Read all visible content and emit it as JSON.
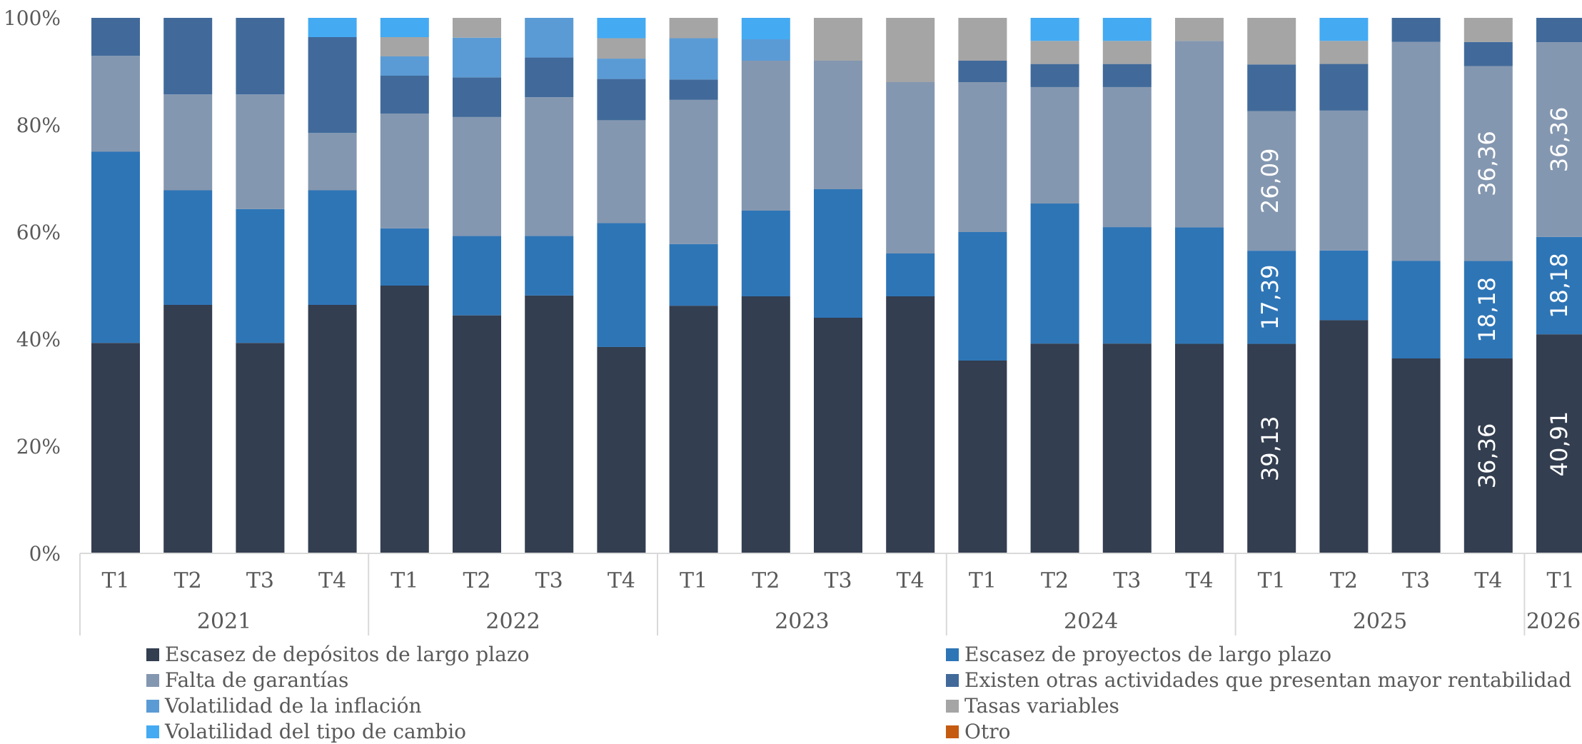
{
  "chart_data": {
    "type": "bar",
    "stacked": true,
    "percent": true,
    "y_ticks": [
      "0%",
      "20%",
      "40%",
      "60%",
      "80%",
      "100%"
    ],
    "ylim": [
      0,
      100
    ],
    "categories": [
      {
        "year": "2021",
        "quarter": "T1"
      },
      {
        "year": "2021",
        "quarter": "T2"
      },
      {
        "year": "2021",
        "quarter": "T3"
      },
      {
        "year": "2021",
        "quarter": "T4"
      },
      {
        "year": "2022",
        "quarter": "T1"
      },
      {
        "year": "2022",
        "quarter": "T2"
      },
      {
        "year": "2022",
        "quarter": "T3"
      },
      {
        "year": "2022",
        "quarter": "T4"
      },
      {
        "year": "2023",
        "quarter": "T1"
      },
      {
        "year": "2023",
        "quarter": "T2"
      },
      {
        "year": "2023",
        "quarter": "T3"
      },
      {
        "year": "2023",
        "quarter": "T4"
      },
      {
        "year": "2024",
        "quarter": "T1"
      },
      {
        "year": "2024",
        "quarter": "T2"
      },
      {
        "year": "2024",
        "quarter": "T3"
      },
      {
        "year": "2024",
        "quarter": "T4"
      },
      {
        "year": "2025",
        "quarter": "T1"
      },
      {
        "year": "2025",
        "quarter": "T2"
      },
      {
        "year": "2025",
        "quarter": "T3"
      },
      {
        "year": "2025",
        "quarter": "T4"
      },
      {
        "year": "2026",
        "quarter": "T1"
      }
    ],
    "years": [
      "2021",
      "2022",
      "2023",
      "2024",
      "2025",
      "2026"
    ],
    "series": [
      {
        "name": "Escasez de depósitos de largo plazo",
        "color": "#333e50",
        "values": [
          39.3,
          46.4,
          39.3,
          46.4,
          50.0,
          44.4,
          48.1,
          38.5,
          46.2,
          48.0,
          44.0,
          48.0,
          36.0,
          39.1,
          39.1,
          39.1,
          39.13,
          43.5,
          36.4,
          36.36,
          40.91
        ]
      },
      {
        "name": "Escasez de proyectos de largo plazo",
        "color": "#2e75b6",
        "values": [
          35.7,
          21.4,
          25.0,
          21.4,
          10.7,
          14.8,
          11.1,
          23.1,
          11.5,
          16.0,
          24.0,
          8.0,
          24.0,
          26.1,
          21.7,
          21.7,
          17.39,
          13.0,
          18.2,
          18.18,
          18.18
        ]
      },
      {
        "name": "Falta de garantías",
        "color": "#8497b0",
        "values": [
          17.9,
          17.9,
          21.4,
          10.7,
          21.4,
          22.2,
          25.9,
          19.2,
          26.9,
          28.0,
          24.0,
          32.0,
          28.0,
          21.7,
          26.1,
          34.8,
          26.09,
          26.1,
          40.9,
          36.36,
          36.36
        ]
      },
      {
        "name": "Existen otras actividades que presentan mayor rentabilidad",
        "color": "#416a9a",
        "values": [
          7.1,
          14.3,
          14.3,
          17.9,
          7.1,
          7.4,
          7.4,
          7.7,
          3.8,
          0,
          0,
          0,
          4.0,
          4.3,
          4.3,
          0,
          8.7,
          8.7,
          4.5,
          4.5,
          4.55
        ]
      },
      {
        "name": "Volatilidad de la inflación",
        "color": "#5b9bd5",
        "values": [
          0,
          0,
          0,
          0,
          3.6,
          7.4,
          7.4,
          3.8,
          7.7,
          4.0,
          0,
          0,
          0,
          0,
          0,
          0,
          0,
          0,
          0,
          0,
          0
        ]
      },
      {
        "name": "Tasas variables",
        "color": "#a5a5a5",
        "values": [
          0,
          0,
          0,
          0,
          3.6,
          3.7,
          0,
          3.8,
          3.8,
          0,
          8.0,
          12.0,
          8.0,
          4.3,
          4.3,
          4.3,
          8.7,
          4.3,
          0,
          4.5,
          0
        ]
      },
      {
        "name": "Volatilidad del tipo de cambio",
        "color": "#44aaf2",
        "values": [
          0,
          0,
          0,
          3.6,
          3.6,
          0,
          0,
          3.8,
          0,
          4.0,
          0,
          0,
          0,
          4.3,
          4.3,
          0,
          0,
          4.3,
          0,
          0,
          0
        ]
      },
      {
        "name": "Otro",
        "color": "#c55a11",
        "values": [
          0,
          0,
          0,
          0,
          0,
          0,
          0,
          0,
          0,
          0,
          0,
          0,
          0,
          0,
          0,
          0,
          0,
          0,
          0,
          0,
          0
        ]
      }
    ],
    "data_labels": [
      {
        "category_index": 16,
        "series_index": 0,
        "text": "39,13"
      },
      {
        "category_index": 16,
        "series_index": 1,
        "text": "17,39"
      },
      {
        "category_index": 16,
        "series_index": 2,
        "text": "26,09"
      },
      {
        "category_index": 19,
        "series_index": 0,
        "text": "36,36"
      },
      {
        "category_index": 19,
        "series_index": 1,
        "text": "18,18"
      },
      {
        "category_index": 19,
        "series_index": 2,
        "text": "36,36"
      },
      {
        "category_index": 20,
        "series_index": 0,
        "text": "40,91"
      },
      {
        "category_index": 20,
        "series_index": 1,
        "text": "18,18"
      },
      {
        "category_index": 20,
        "series_index": 2,
        "text": "36,36"
      }
    ],
    "legend_position": "bottom",
    "grid": false
  }
}
